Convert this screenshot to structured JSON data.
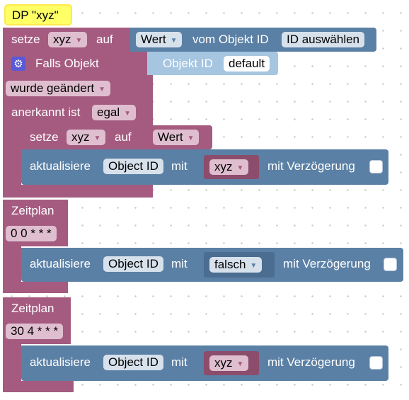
{
  "dp_comment": "DP \"xyz\"",
  "setze_top": {
    "label_setze": "setze",
    "var": "xyz",
    "label_auf": "auf",
    "wert": "Wert",
    "label_vom": "vom Objekt ID",
    "id_select": "ID auswählen"
  },
  "trigger": {
    "title": "Falls Objekt",
    "objekt_label": "Objekt ID",
    "objekt_value": "default",
    "changed": "wurde geändert",
    "ack_label": "anerkannt ist",
    "ack_value": "egal",
    "setze": {
      "label_setze": "setze",
      "var": "xyz",
      "label_auf": "auf",
      "wert": "Wert"
    },
    "update": {
      "label": "aktualisiere",
      "object": "Object ID",
      "mit": "mit",
      "value": "xyz",
      "delay": "mit Verzögerung"
    }
  },
  "schedule1": {
    "title": "Zeitplan",
    "cron": "0 0 * * *",
    "update": {
      "label": "aktualisiere",
      "object": "Object ID",
      "mit": "mit",
      "value": "falsch",
      "delay": "mit Verzögerung"
    }
  },
  "schedule2": {
    "title": "Zeitplan",
    "cron": "30 4 * * *",
    "update": {
      "label": "aktualisiere",
      "object": "Object ID",
      "mit": "mit",
      "value": "xyz",
      "delay": "mit Verzögerung"
    }
  },
  "dropdown_arrow": "▼",
  "colors": {
    "variables": "#a55b80",
    "objects": "#5b80a5",
    "comment": "#ffff66"
  }
}
